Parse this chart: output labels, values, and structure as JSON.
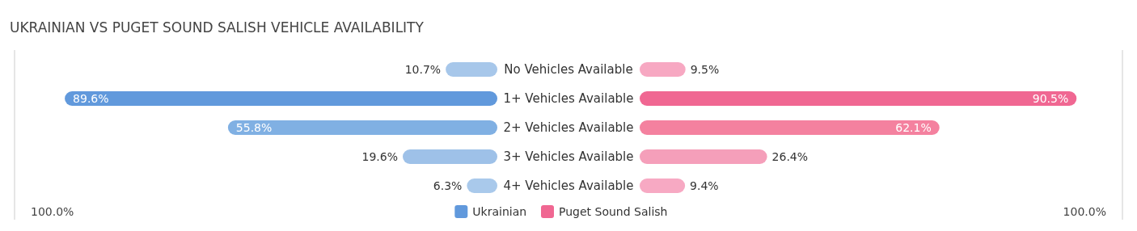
{
  "chart_data": [
    {
      "type": "bar",
      "orientation": "horizontal",
      "title": "UKRAINIAN VS PUGET SOUND SALISH VEHICLE AVAILABILITY",
      "categories": [
        "No Vehicles Available",
        "1+ Vehicles Available",
        "2+ Vehicles Available",
        "3+ Vehicles Available",
        "4+ Vehicles Available"
      ],
      "series": [
        {
          "name": "Ukrainian",
          "color": "#6199dc",
          "values": [
            10.7,
            89.6,
            55.8,
            19.6,
            6.3
          ],
          "value_labels": [
            "10.7%",
            "89.6%",
            "55.8%",
            "19.6%",
            "6.3%"
          ],
          "colors": [
            "#a7c7ea",
            "#6199dc",
            "#80b0e3",
            "#9ec1e8",
            "#a9c9eb"
          ]
        }
      ],
      "xlim": [
        100,
        0
      ],
      "annotations": [
        "100.0%"
      ],
      "legend": "bottom"
    },
    {
      "type": "bar",
      "orientation": "horizontal",
      "categories": [
        null,
        null,
        null,
        null,
        null
      ],
      "series": [
        {
          "name": "Puget Sound Salish",
          "color": "#f06792",
          "values": [
            9.5,
            90.5,
            62.1,
            26.4,
            9.4
          ],
          "value_labels": [
            "9.5%",
            "90.5%",
            "62.1%",
            "26.4%",
            "9.4%"
          ],
          "colors": [
            "#f7a8c2",
            "#f06792",
            "#f4819f",
            "#f59fba",
            "#f7a9c3"
          ]
        }
      ],
      "xlim": [
        0,
        100
      ],
      "annotations": [
        "100.0%"
      ],
      "legend": "bottom"
    }
  ]
}
